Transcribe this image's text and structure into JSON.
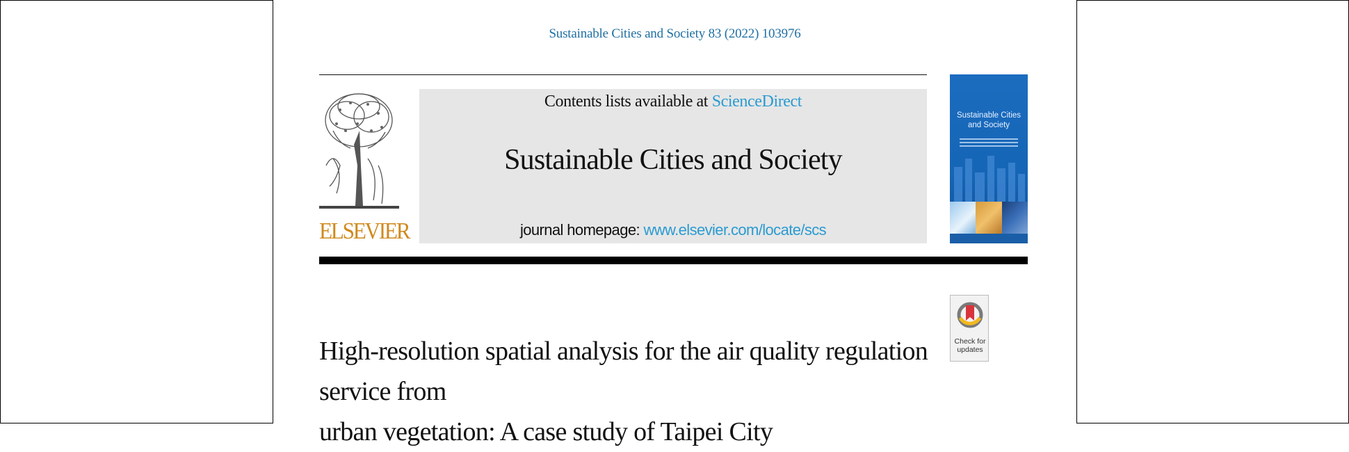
{
  "header": {
    "citation": "Sustainable Cities and Society 83 (2022) 103976"
  },
  "publisher": {
    "name": "ELSEVIER",
    "brand_color": "#d08a1f"
  },
  "banner": {
    "contents_prefix": "Contents lists available at",
    "contents_link": "ScienceDirect",
    "journal_title": "Sustainable Cities and Society",
    "homepage_prefix": "journal homepage:",
    "homepage_link": "www.elsevier.com/locate/scs",
    "link_color": "#2a9bd1"
  },
  "cover": {
    "title": "Sustainable Cities and Society",
    "color": "#1c6cbf"
  },
  "badge": {
    "icon": "check-for-updates-icon",
    "label": "Check for updates"
  },
  "article": {
    "title_line1": "High-resolution spatial analysis for the air quality regulation service from",
    "title_line2": "urban vegetation: A case study of Taipei City"
  }
}
